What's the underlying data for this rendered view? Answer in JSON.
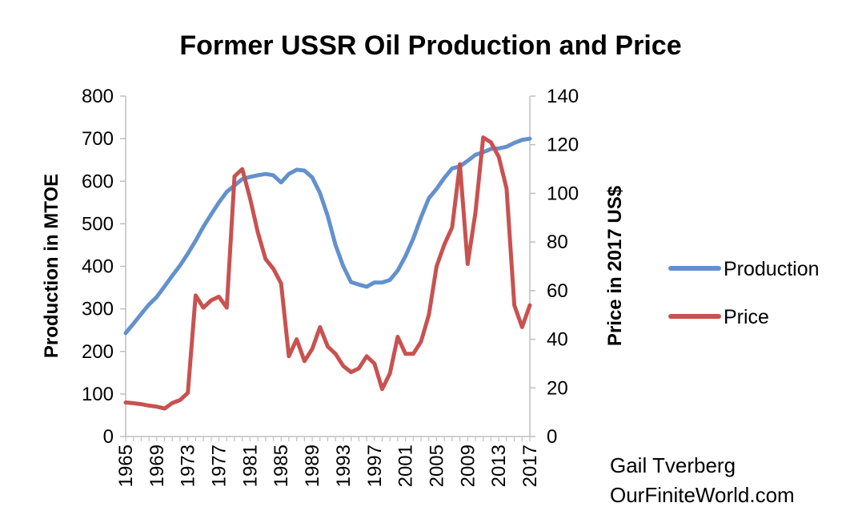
{
  "chart_data": {
    "type": "line",
    "title": "Former USSR Oil Production and Price",
    "y_left_label": "Production in MTOE",
    "y_right_label": "Price in 2017 US$",
    "y_left_lim": [
      0,
      800
    ],
    "y_left_ticks": [
      0,
      100,
      200,
      300,
      400,
      500,
      600,
      700,
      800
    ],
    "y_right_lim": [
      0,
      140
    ],
    "y_right_ticks": [
      0,
      20,
      40,
      60,
      80,
      100,
      120,
      140
    ],
    "x": [
      1965,
      1966,
      1967,
      1968,
      1969,
      1970,
      1971,
      1972,
      1973,
      1974,
      1975,
      1976,
      1977,
      1978,
      1979,
      1980,
      1981,
      1982,
      1983,
      1984,
      1985,
      1986,
      1987,
      1988,
      1989,
      1990,
      1991,
      1992,
      1993,
      1994,
      1995,
      1996,
      1997,
      1998,
      1999,
      2000,
      2001,
      2002,
      2003,
      2004,
      2005,
      2006,
      2007,
      2008,
      2009,
      2010,
      2011,
      2012,
      2013,
      2014,
      2015,
      2016,
      2017
    ],
    "x_tick_labels": [
      "1965",
      "1969",
      "1973",
      "1977",
      "1981",
      "1985",
      "1989",
      "1993",
      "1997",
      "2001",
      "2005",
      "2009",
      "2013",
      "2017"
    ],
    "series": [
      {
        "name": "Production",
        "axis": "left",
        "color": "#6391cc",
        "values": [
          243,
          265,
          288,
          310,
          328,
          353,
          378,
          402,
          430,
          460,
          493,
          522,
          550,
          575,
          590,
          605,
          610,
          614,
          617,
          614,
          597,
          617,
          627,
          625,
          609,
          572,
          518,
          450,
          400,
          363,
          357,
          352,
          362,
          362,
          368,
          390,
          424,
          465,
          515,
          560,
          582,
          608,
          630,
          635,
          648,
          662,
          668,
          676,
          677,
          681,
          690,
          697,
          700
        ]
      },
      {
        "name": "Price",
        "axis": "right",
        "color": "#c85250",
        "values": [
          14,
          13.7,
          13.3,
          12.7,
          12.3,
          11.5,
          13.8,
          15,
          18,
          58,
          53,
          56,
          57.5,
          53,
          107,
          110,
          98,
          84,
          73,
          69,
          63,
          33,
          40,
          31,
          36,
          45,
          37,
          34,
          29,
          26.5,
          28,
          33,
          30,
          19.5,
          26,
          41,
          34,
          34,
          39,
          50,
          70,
          79,
          86,
          112,
          71,
          92,
          123,
          121,
          115,
          102,
          54,
          45,
          54
        ]
      }
    ],
    "legend": {
      "position": "right",
      "items": [
        "Production",
        "Price"
      ]
    },
    "credit_lines": [
      "Gail Tverberg",
      "OurFiniteWorld.com"
    ],
    "grid": false
  }
}
